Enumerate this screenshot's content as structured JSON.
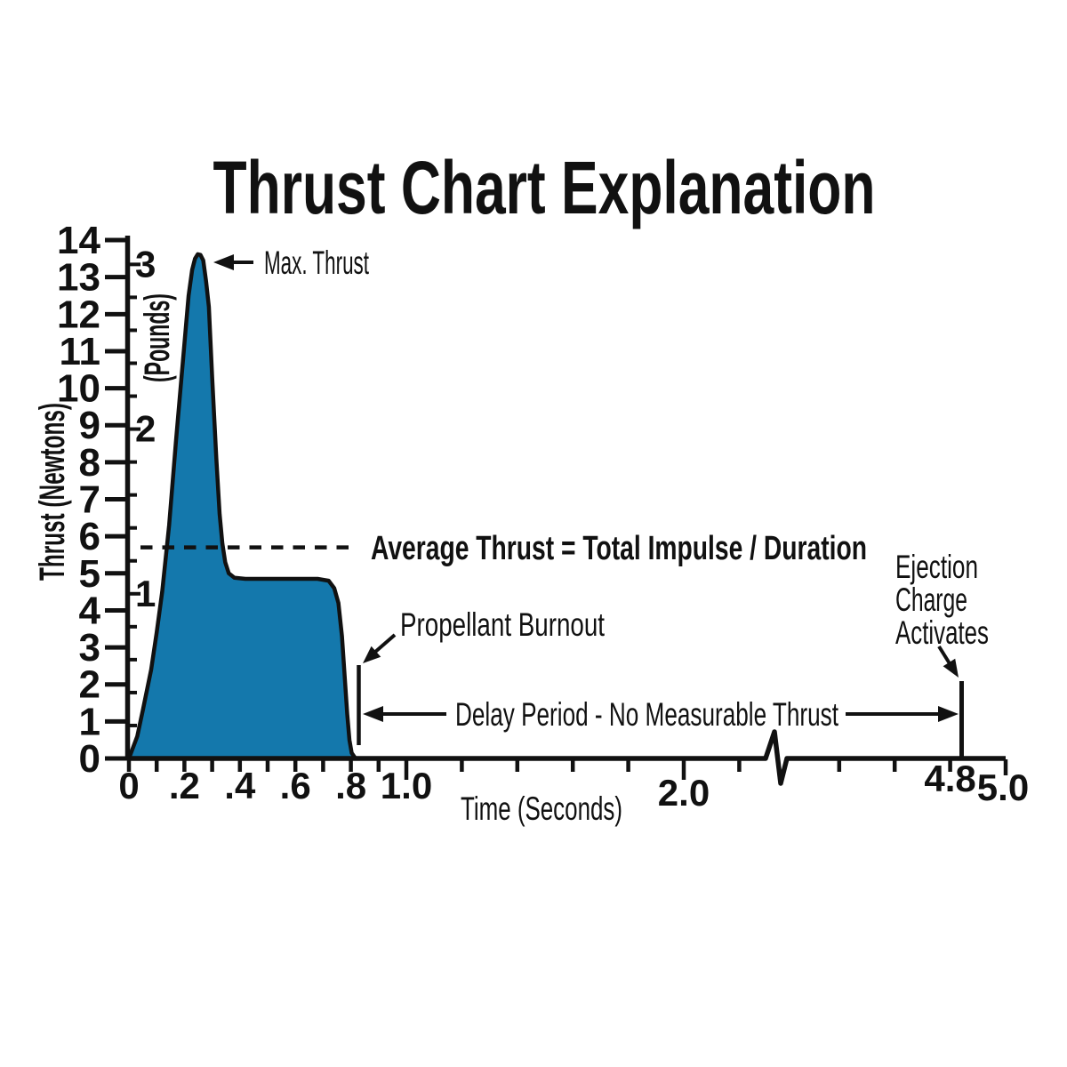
{
  "chart_data": {
    "type": "area",
    "title": "Thrust Chart Explanation",
    "xlabel": "Time (Seconds)",
    "ylabel_primary": "Thrust (Newtons)",
    "ylabel_secondary": "(Pounds)",
    "grid": false,
    "colors": {
      "curve_fill": "#1478AC",
      "curve_stroke": "#111111",
      "axis": "#111111",
      "text": "#111111",
      "background": "#ffffff"
    },
    "y_axis_newtons": {
      "range": [
        0,
        14
      ],
      "tick_step": 1,
      "tick_labels": [
        "0",
        "1",
        "2",
        "3",
        "4",
        "5",
        "6",
        "7",
        "8",
        "9",
        "10",
        "11",
        "12",
        "13",
        "14"
      ]
    },
    "y_axis_pounds": {
      "range": [
        0,
        3
      ],
      "minor_tick_step_lb": 0.2,
      "labeled_ticks": [
        {
          "lb": 1,
          "label": "1"
        },
        {
          "lb": 2,
          "label": "2"
        },
        {
          "lb": 3,
          "label": "3"
        }
      ],
      "newtons_per_pound": 4.448
    },
    "x_axis": {
      "range_seconds": [
        0,
        5.0
      ],
      "axis_break": {
        "between_seconds": [
          2.2,
          4.4
        ]
      },
      "ticks": [
        {
          "t": 0.0,
          "label": "0",
          "major": false
        },
        {
          "t": 0.1,
          "label": "",
          "major": false
        },
        {
          "t": 0.2,
          "label": ".2",
          "major": false
        },
        {
          "t": 0.3,
          "label": "",
          "major": false
        },
        {
          "t": 0.4,
          "label": ".4",
          "major": false
        },
        {
          "t": 0.5,
          "label": "",
          "major": false
        },
        {
          "t": 0.6,
          "label": ".6",
          "major": false
        },
        {
          "t": 0.7,
          "label": "",
          "major": false
        },
        {
          "t": 0.8,
          "label": ".8",
          "major": false
        },
        {
          "t": 0.9,
          "label": "",
          "major": false
        },
        {
          "t": 1.0,
          "label": "1.0",
          "major": true
        },
        {
          "t": 1.2,
          "label": "",
          "major": false
        },
        {
          "t": 1.4,
          "label": "",
          "major": false
        },
        {
          "t": 1.6,
          "label": "",
          "major": false
        },
        {
          "t": 1.8,
          "label": "",
          "major": false
        },
        {
          "t": 2.0,
          "label": "2.0",
          "major": true
        },
        {
          "t": 2.2,
          "label": "",
          "major": false
        },
        {
          "t": 4.4,
          "label": "",
          "major": false
        },
        {
          "t": 4.6,
          "label": "",
          "major": false
        },
        {
          "t": 4.8,
          "label": "4.8",
          "major": false
        },
        {
          "t": 5.0,
          "label": "5.0",
          "major": false
        }
      ]
    },
    "curve_points_t_seconds_thrust_newtons": [
      [
        0.0,
        0.0
      ],
      [
        0.03,
        0.6
      ],
      [
        0.05,
        1.3
      ],
      [
        0.08,
        2.4
      ],
      [
        0.1,
        3.4
      ],
      [
        0.12,
        4.5
      ],
      [
        0.145,
        6.3
      ],
      [
        0.17,
        8.6
      ],
      [
        0.2,
        11.2
      ],
      [
        0.215,
        12.5
      ],
      [
        0.228,
        13.2
      ],
      [
        0.238,
        13.5
      ],
      [
        0.248,
        13.62
      ],
      [
        0.258,
        13.6
      ],
      [
        0.268,
        13.45
      ],
      [
        0.278,
        12.9
      ],
      [
        0.288,
        12.2
      ],
      [
        0.3,
        10.3
      ],
      [
        0.315,
        8.1
      ],
      [
        0.327,
        6.6
      ],
      [
        0.337,
        5.8
      ],
      [
        0.347,
        5.3
      ],
      [
        0.36,
        5.0
      ],
      [
        0.38,
        4.88
      ],
      [
        0.42,
        4.85
      ],
      [
        0.55,
        4.85
      ],
      [
        0.68,
        4.85
      ],
      [
        0.72,
        4.8
      ],
      [
        0.74,
        4.6
      ],
      [
        0.755,
        4.2
      ],
      [
        0.768,
        3.3
      ],
      [
        0.778,
        2.2
      ],
      [
        0.787,
        1.2
      ],
      [
        0.795,
        0.5
      ],
      [
        0.803,
        0.15
      ],
      [
        0.815,
        0.02
      ],
      [
        0.82,
        0.0
      ]
    ],
    "peak_thrust": {
      "t_seconds": 0.25,
      "newtons": 13.6,
      "pounds": 3.05
    },
    "plateau_thrust_newtons": 4.85,
    "average_thrust_newtons": 5.7,
    "propellant_burnout_t_seconds": 0.8,
    "ejection_charge_t_seconds": 4.8,
    "annotations": {
      "max_thrust": {
        "label": "Max. Thrust"
      },
      "average_thrust": {
        "label": "Average Thrust = Total Impulse / Duration"
      },
      "propellant_burnout": {
        "label": "Propellant Burnout"
      },
      "delay_period": {
        "label": "Delay Period - No Measurable Thrust"
      },
      "ejection_charge": {
        "lines": [
          "Ejection",
          "Charge",
          "Activates"
        ]
      }
    }
  }
}
